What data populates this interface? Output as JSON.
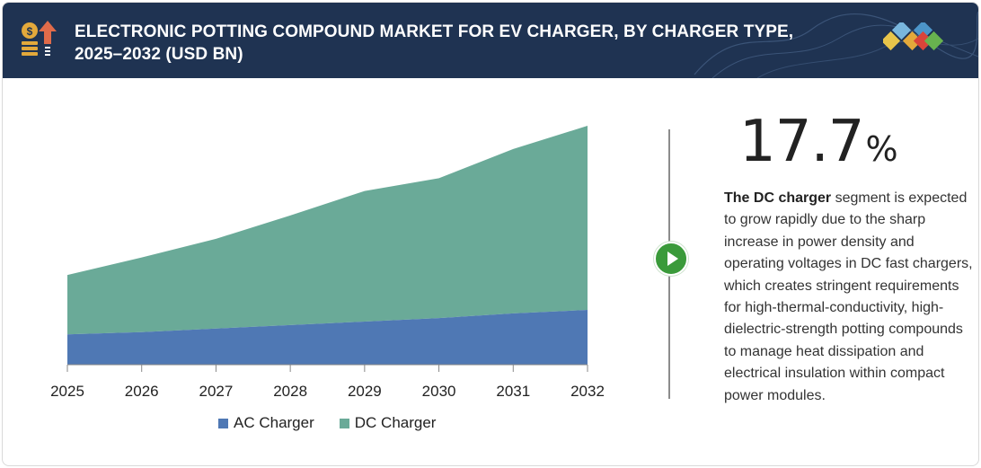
{
  "header": {
    "title_line1": "ELECTRONIC POTTING COMPOUND MARKET FOR EV CHARGER, BY CHARGER TYPE,",
    "title_line2": "2025–2032 (USD BN)"
  },
  "colors": {
    "header_bg": "#1f3352",
    "ac": "#4f78b4",
    "dc": "#6aaa98",
    "play": "#3a9a3a"
  },
  "chart_data": {
    "type": "area",
    "stacked": true,
    "title": "Electronic Potting Compound Market for EV Charger, by Charger Type, 2025–2032 (USD BN)",
    "x": [
      "2025",
      "2026",
      "2027",
      "2028",
      "2029",
      "2030",
      "2031",
      "2032"
    ],
    "series": [
      {
        "name": "AC Charger",
        "color": "#4f78b4",
        "values": [
          0.26,
          0.28,
          0.31,
          0.34,
          0.37,
          0.4,
          0.44,
          0.47
        ]
      },
      {
        "name": "DC Charger",
        "color": "#6aaa98",
        "values": [
          0.51,
          0.64,
          0.77,
          0.94,
          1.12,
          1.2,
          1.41,
          1.58
        ]
      }
    ],
    "ylim": [
      0,
      2.15
    ],
    "xlabel": "",
    "ylabel": "",
    "legend": "bottom-center",
    "grid": false
  },
  "legend": {
    "ac_label": "AC Charger",
    "dc_label": "DC Charger"
  },
  "stat": {
    "value": "17.7",
    "unit": "%",
    "desc_bold": "The DC charger",
    "desc_rest": " segment is expected to grow rapidly due to the sharp increase in power density and operating voltages in DC fast chargers, which creates stringent requirements for high-thermal-conductivity, high-dielectric-strength potting compounds to manage heat dissipation and electrical insulation within compact power modules."
  }
}
